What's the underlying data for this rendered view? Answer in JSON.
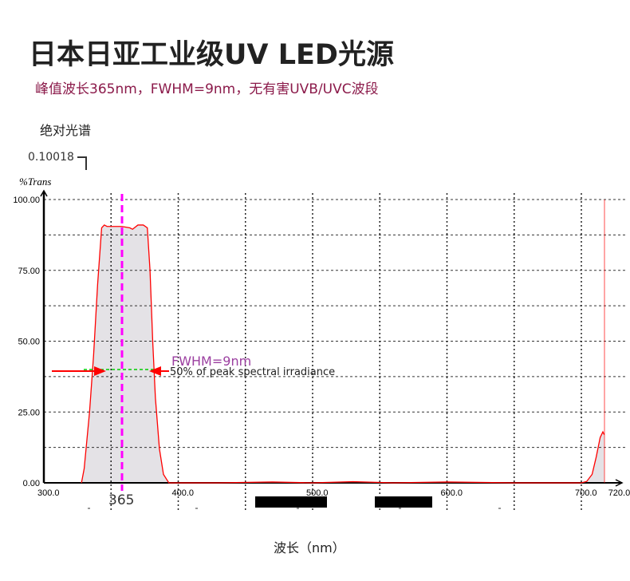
{
  "header": {
    "title": "日本日亚工业级UV LED光源",
    "subtitle": "峰值波长365nm，FWHM=9nm，无有害UVB/UVC波段"
  },
  "chart_label": "绝对光谱",
  "scale_value": "0.10018",
  "chart_data": {
    "type": "area",
    "ylabel": "%Trans",
    "xlabel": "波长（nm）",
    "xlim": [
      300,
      720
    ],
    "ylim": [
      0,
      100
    ],
    "x_ticks": [
      "300.0",
      "400.0",
      "500.0",
      "600.0",
      "700.0",
      "720.00"
    ],
    "y_ticks": [
      "0.00",
      "25.00",
      "50.00",
      "75.00",
      "100.00"
    ],
    "grid": true,
    "peak_marker": {
      "value": 365,
      "label": "365",
      "color": "#ff00ff"
    },
    "annotation": {
      "fwhm": "FWHM=9nm",
      "half_max": "50% of peak spectral irradiance",
      "level": 39
    },
    "series": [
      {
        "color": "#ff0000",
        "fill": "#e4e2e6",
        "points": [
          [
            328,
            0
          ],
          [
            330,
            5
          ],
          [
            334,
            25
          ],
          [
            337,
            45
          ],
          [
            340,
            70
          ],
          [
            343,
            90
          ],
          [
            345,
            91
          ],
          [
            347,
            90.5
          ],
          [
            352,
            90.5
          ],
          [
            358,
            90.5
          ],
          [
            364,
            90
          ],
          [
            366,
            89.5
          ],
          [
            370,
            91
          ],
          [
            374,
            91
          ],
          [
            377,
            90
          ],
          [
            379,
            75
          ],
          [
            381,
            50
          ],
          [
            383,
            30
          ],
          [
            386,
            12
          ],
          [
            389,
            3
          ],
          [
            393,
            0
          ],
          [
            430,
            0
          ],
          [
            470,
            0.3
          ],
          [
            500,
            0
          ],
          [
            530,
            0.4
          ],
          [
            560,
            0
          ],
          [
            600,
            0.3
          ],
          [
            650,
            0
          ],
          [
            700,
            0
          ],
          [
            704,
            0.5
          ],
          [
            708,
            3
          ],
          [
            711,
            9
          ],
          [
            714,
            16
          ],
          [
            716,
            18
          ],
          [
            717,
            17
          ]
        ]
      }
    ],
    "reference_line": {
      "value": 717,
      "color": "#ff0000"
    }
  }
}
